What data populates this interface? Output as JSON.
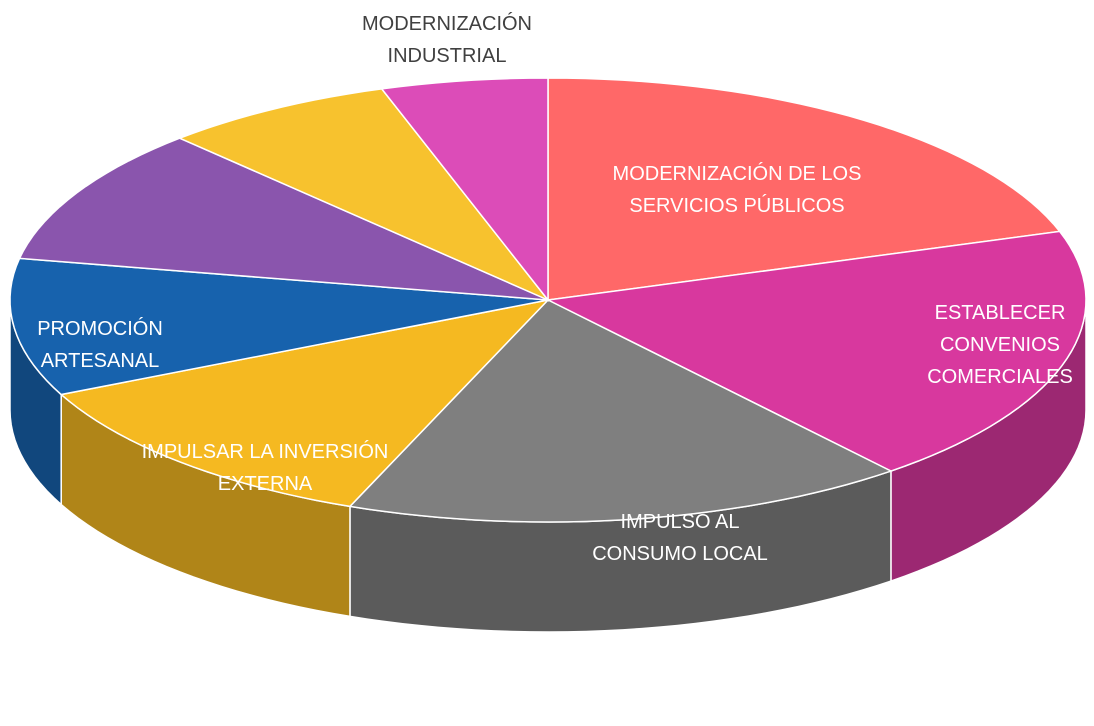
{
  "chart_data": {
    "type": "pie3d",
    "categories": [
      "MODERNIZACIÓN DE LOS SERVICIOS PÚBLICOS",
      "ESTABLECER CONVENIOS COMERCIALES",
      "IMPULSO AL CONSUMO LOCAL",
      "IMPULSAR LA INVERSIÓN EXTERNA",
      "PROMOCIÓN ARTESANAL",
      null,
      null,
      "MODERNIZACIÓN INDUSTRIAL"
    ],
    "values": [
      20,
      19,
      17,
      12,
      10,
      10,
      7,
      5
    ],
    "colors": [
      "#ff6868",
      "#d8389e",
      "#7f7f7f",
      "#f5b921",
      "#1762ad",
      "#8a55ad",
      "#f7c22e",
      "#dc4cb8"
    ]
  }
}
